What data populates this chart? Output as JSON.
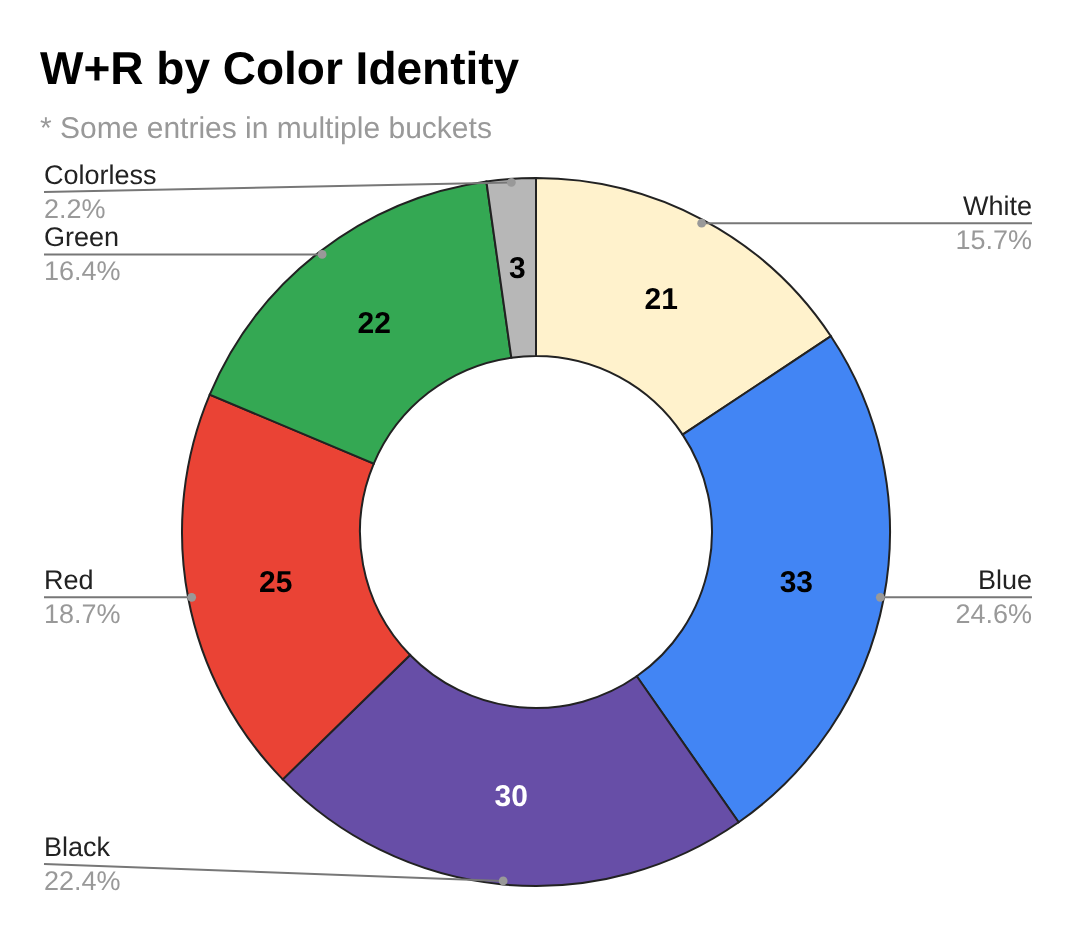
{
  "chart_data": {
    "type": "donut",
    "title": "W+R by Color Identity",
    "subtitle": "* Some entries in multiple buckets",
    "categories": [
      "White",
      "Blue",
      "Black",
      "Red",
      "Green",
      "Colorless"
    ],
    "values": [
      21,
      33,
      30,
      25,
      22,
      3
    ],
    "colors": [
      "#fff2cc",
      "#4285f4",
      "#674ea7",
      "#ea4335",
      "#34a853",
      "#b7b7b7"
    ],
    "data_labels": true,
    "annotations": [
      "15.7%",
      "24.6%",
      "22.4%",
      "18.7%",
      "16.4%",
      "2.2%"
    ]
  }
}
